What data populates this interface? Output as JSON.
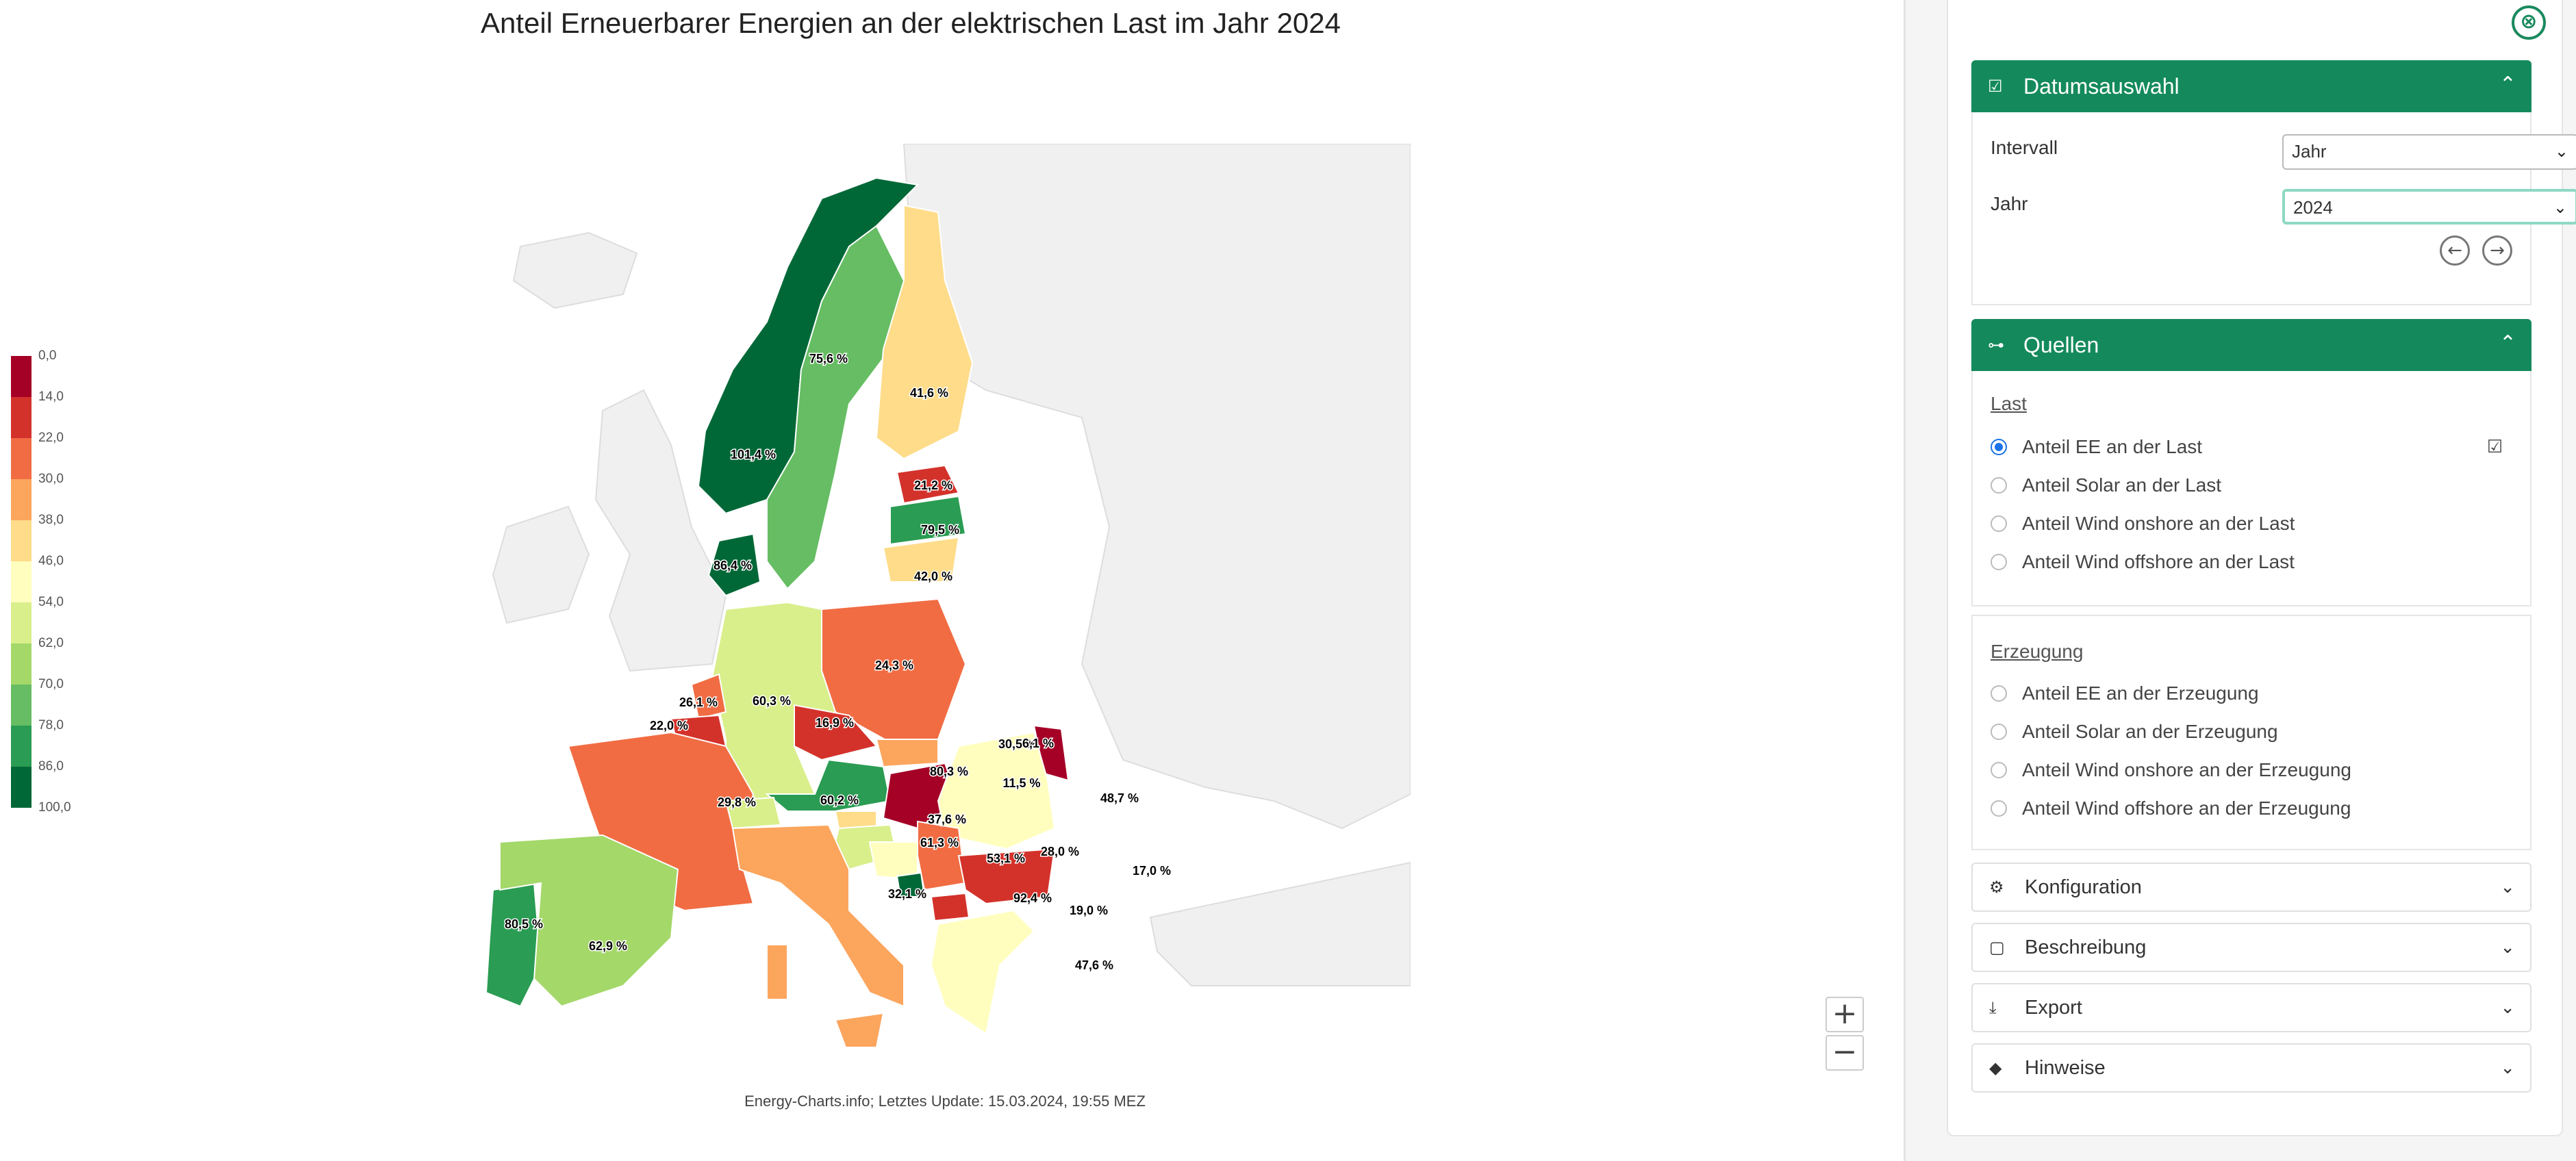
{
  "title": "Anteil Erneuerbarer Energien an der elektrischen Last im Jahr 2024",
  "footer_note": "Energy-Charts.info; Letztes Update: 15.03.2024, 19:55 MEZ",
  "legend": {
    "labels": [
      "0,0",
      "14,0",
      "22,0",
      "30,0",
      "38,0",
      "46,0",
      "54,0",
      "62,0",
      "70,0",
      "78,0",
      "86,0",
      "100,0"
    ],
    "colors": [
      "#a50026",
      "#d3322b",
      "#f16c43",
      "#fca55d",
      "#fedc89",
      "#fffebe",
      "#d9ef8b",
      "#a4d869",
      "#66bd63",
      "#2a9c53",
      "#006837"
    ]
  },
  "map": {
    "values": {
      "norway": "101,4 %",
      "sweden": "75,6 %",
      "finland": "41,6 %",
      "estonia": "21,2 %",
      "latvia": "79,5 %",
      "lithuania": "42,0 %",
      "denmark": "86,4 %",
      "poland": "24,3 %",
      "germany": "60,3 %",
      "netherlands": "26,1 %",
      "belgium": "22,0 %",
      "czechia": "16,9 %",
      "slovakia": "30,5 %",
      "moldova": "6,1 %",
      "austria": "80,3 %",
      "hungary": "11,5 %",
      "romania": "48,7 %",
      "france": "29,8 %",
      "switzerland": "60,2 %",
      "slovenia": "37,6 %",
      "croatia": "61,3 %",
      "bosnia": "53,1 %",
      "serbia": "28,0 %",
      "bulgaria": "17,0 %",
      "montenegro": "92,4 %",
      "macedonia": "19,0 %",
      "italy": "32,1 %",
      "greece": "47,6 %",
      "portugal": "80,5 %",
      "spain": "62,9 %"
    }
  },
  "zoom": {
    "in": "+",
    "out": "−"
  },
  "sidebar": {
    "close_icon": "⊗",
    "datum": {
      "title": "Datumsauswahl",
      "intervall_label": "Intervall",
      "intervall_value": "Jahr",
      "jahr_label": "Jahr",
      "jahr_value": "2024"
    },
    "quellen": {
      "title": "Quellen",
      "last_title": "Last",
      "last_options": [
        "Anteil EE an der Last",
        "Anteil Solar an der Last",
        "Anteil Wind onshore an der Last",
        "Anteil Wind offshore an der Last"
      ],
      "erzeugung_title": "Erzeugung",
      "erzeugung_options": [
        "Anteil EE an der Erzeugung",
        "Anteil Solar an der Erzeugung",
        "Anteil Wind onshore an der Erzeugung",
        "Anteil Wind offshore an der Erzeugung"
      ]
    },
    "sections": [
      "Konfiguration",
      "Beschreibung",
      "Export",
      "Hinweise"
    ]
  }
}
